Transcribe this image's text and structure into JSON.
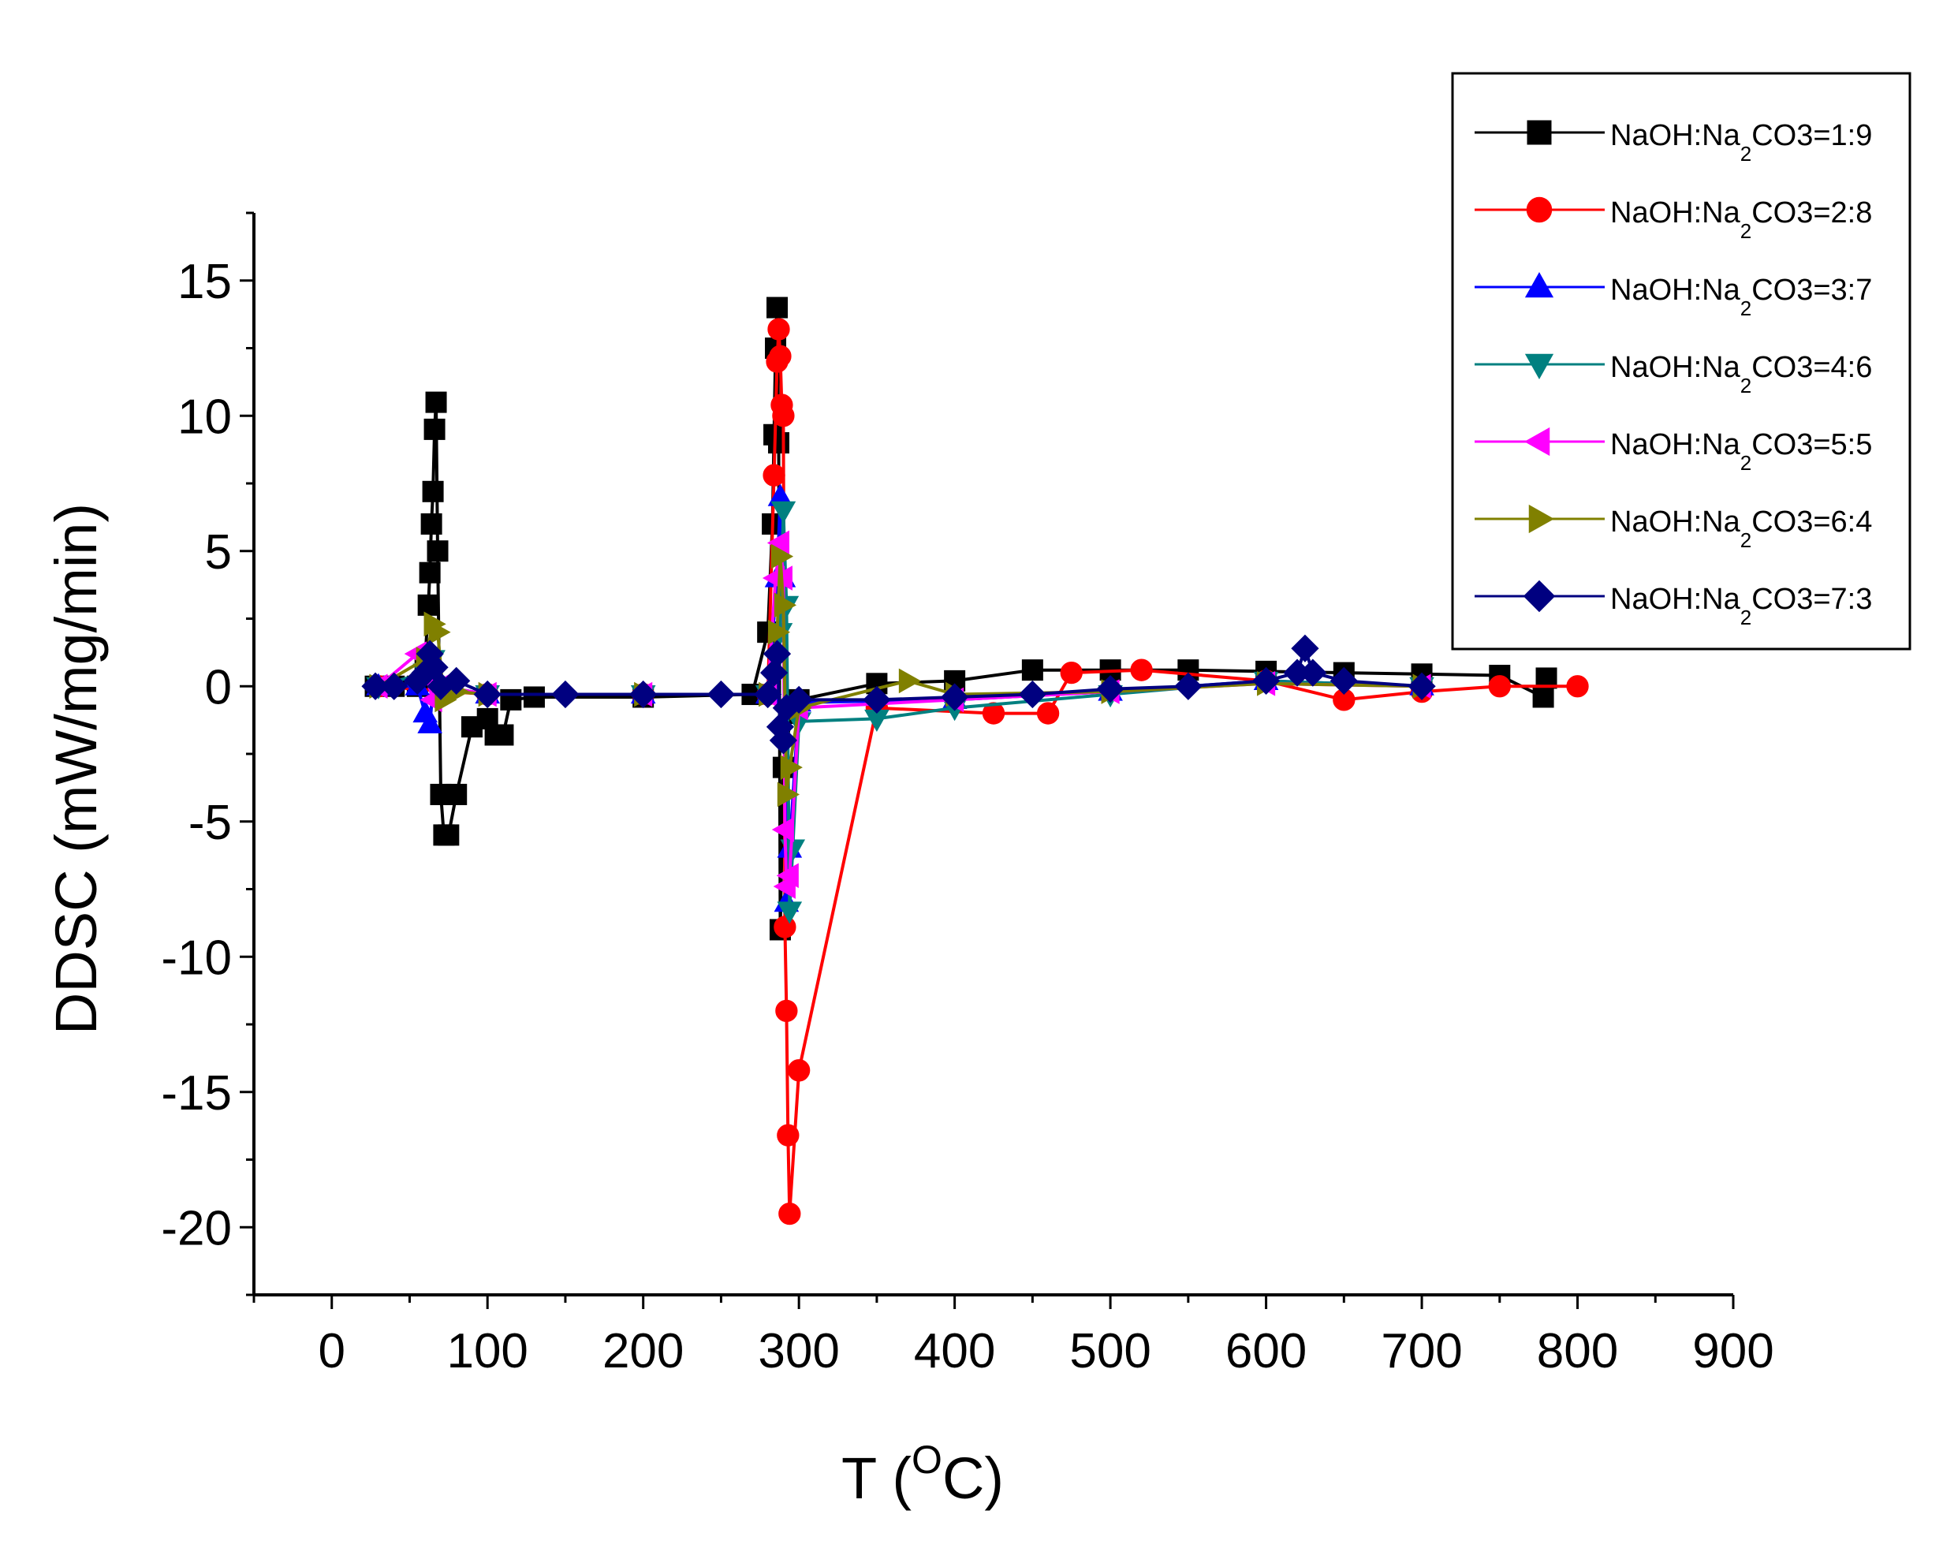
{
  "chart_data": {
    "type": "line",
    "title": "",
    "xlabel": {
      "prefix": "T (",
      "sup": "O",
      "suffix": "C)"
    },
    "ylabel": "DDSC (mW/mg/min)",
    "xlim": [
      -50,
      900
    ],
    "ylim": [
      -22.5,
      17.5
    ],
    "xticks": [
      0,
      100,
      200,
      300,
      400,
      500,
      600,
      700,
      800,
      900
    ],
    "yticks": [
      -20,
      -15,
      -10,
      -5,
      0,
      5,
      10,
      15
    ],
    "grid": false,
    "legend_position": "top-right",
    "series": [
      {
        "name": "NaOH:Na2CO3=1:9",
        "label_parts": [
          "NaOH:Na",
          "2",
          "CO3=1:9"
        ],
        "color": "#000000",
        "marker": "square",
        "x": [
          28,
          40,
          55,
          60,
          62,
          63,
          64,
          65,
          66,
          67,
          68,
          70,
          72,
          75,
          80,
          90,
          100,
          105,
          110,
          115,
          130,
          200,
          270,
          280,
          283,
          284,
          285,
          286,
          287,
          288,
          290,
          295,
          300,
          350,
          400,
          450,
          500,
          550,
          600,
          650,
          700,
          750,
          778,
          780
        ],
        "y": [
          0,
          0,
          0,
          1,
          3,
          4.2,
          6,
          7.2,
          9.5,
          10.5,
          5,
          -4,
          -5.5,
          -5.5,
          -4,
          -1.5,
          -1.2,
          -1.8,
          -1.8,
          -0.5,
          -0.4,
          -0.4,
          -0.3,
          2,
          6,
          9.3,
          12.5,
          14,
          9,
          -9,
          -3,
          -1,
          -0.5,
          0.1,
          0.2,
          0.6,
          0.6,
          0.6,
          0.55,
          0.5,
          0.45,
          0.4,
          -0.4,
          0.3
        ]
      },
      {
        "name": "NaOH:Na2CO3=2:8",
        "label_parts": [
          "NaOH:Na",
          "2",
          "CO3=2:8"
        ],
        "color": "#ff0000",
        "marker": "circle",
        "x": [
          30,
          100,
          200,
          280,
          284,
          286,
          287,
          288,
          289,
          290,
          291,
          292,
          293,
          294,
          300,
          350,
          425,
          460,
          475,
          520,
          600,
          650,
          700,
          750,
          800
        ],
        "y": [
          0,
          -0.3,
          -0.3,
          -0.3,
          7.8,
          12,
          13.2,
          12.2,
          10.4,
          10,
          -8.9,
          -12,
          -16.6,
          -19.5,
          -14.2,
          -0.8,
          -1,
          -1,
          0.5,
          0.6,
          0.2,
          -0.5,
          -0.2,
          0,
          0
        ]
      },
      {
        "name": "NaOH:Na2CO3=3:7",
        "label_parts": [
          "NaOH:Na",
          "2",
          "CO3=3:7"
        ],
        "color": "#0000ff",
        "marker": "triangle-up",
        "x": [
          30,
          55,
          60,
          63,
          66,
          70,
          100,
          200,
          280,
          286,
          288,
          290,
          292,
          294,
          300,
          400,
          500,
          600,
          700
        ],
        "y": [
          0,
          0,
          -1,
          -1.4,
          0.5,
          0,
          -0.3,
          -0.3,
          -0.3,
          4,
          7,
          4,
          -8,
          -6,
          -0.6,
          -0.5,
          -0.2,
          0.2,
          0
        ]
      },
      {
        "name": "NaOH:Na2CO3=4:6",
        "label_parts": [
          "NaOH:Na",
          "2",
          "CO3=4:6"
        ],
        "color": "#008080",
        "marker": "triangle-down",
        "x": [
          30,
          60,
          65,
          70,
          100,
          200,
          280,
          288,
          290,
          292,
          294,
          296,
          300,
          350,
          400,
          500,
          600,
          700
        ],
        "y": [
          0,
          0.5,
          1,
          0,
          -0.3,
          -0.3,
          -0.3,
          2,
          6.5,
          3,
          -8.3,
          -6,
          -1.3,
          -1.2,
          -0.8,
          -0.3,
          0.2,
          0
        ]
      },
      {
        "name": "NaOH:Na2CO3=5:5",
        "label_parts": [
          "NaOH:Na",
          "2",
          "CO3=5:5"
        ],
        "color": "#ff00ff",
        "marker": "triangle-left",
        "x": [
          30,
          55,
          60,
          65,
          70,
          100,
          200,
          280,
          285,
          288,
          290,
          291,
          292,
          294,
          300,
          400,
          500,
          600,
          700
        ],
        "y": [
          0,
          1.2,
          0.5,
          -0.5,
          0,
          -0.3,
          -0.3,
          -0.3,
          4,
          5.3,
          4,
          -5.3,
          -7.4,
          -7,
          -0.8,
          -0.5,
          -0.2,
          0.1,
          0
        ]
      },
      {
        "name": "NaOH:Na2CO3=6:4",
        "label_parts": [
          "NaOH:Na",
          "2",
          "CO3=6:4"
        ],
        "color": "#808000",
        "marker": "triangle-right",
        "x": [
          30,
          60,
          65,
          68,
          72,
          80,
          100,
          200,
          280,
          286,
          288,
          290,
          292,
          294,
          300,
          370,
          400,
          500,
          600,
          700
        ],
        "y": [
          0,
          1,
          2.3,
          2,
          -0.5,
          -0.2,
          -0.3,
          -0.3,
          -0.3,
          2,
          4.8,
          3,
          -4,
          -3,
          -0.8,
          0.2,
          -0.3,
          -0.2,
          0.1,
          0
        ]
      },
      {
        "name": "NaOH:Na2CO3=7:3",
        "label_parts": [
          "NaOH:Na",
          "2",
          "CO3=7:3"
        ],
        "color": "#000080",
        "marker": "diamond",
        "x": [
          28,
          40,
          55,
          60,
          63,
          66,
          70,
          80,
          100,
          150,
          200,
          250,
          280,
          284,
          286,
          288,
          290,
          292,
          300,
          350,
          400,
          450,
          500,
          550,
          600,
          620,
          625,
          630,
          650,
          700
        ],
        "y": [
          0,
          0,
          0.2,
          0.5,
          1.2,
          0.7,
          0,
          0.2,
          -0.3,
          -0.3,
          -0.3,
          -0.3,
          -0.3,
          0.5,
          1.2,
          -1.5,
          -2,
          -0.8,
          -0.5,
          -0.5,
          -0.4,
          -0.3,
          -0.1,
          0,
          0.2,
          0.5,
          1.4,
          0.5,
          0.2,
          0
        ]
      }
    ]
  }
}
